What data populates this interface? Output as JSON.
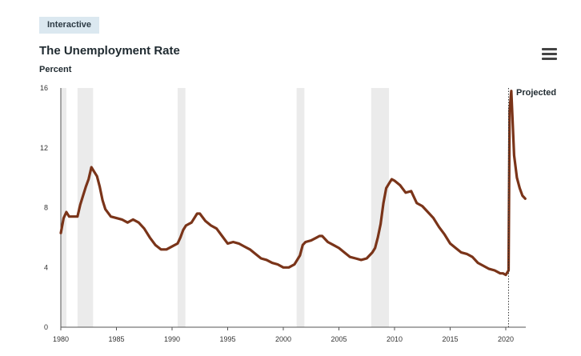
{
  "badge": "Interactive",
  "menu_icon": "hamburger-menu-icon",
  "chart_data": {
    "type": "line",
    "title": "The Unemployment Rate",
    "ylabel": "Percent",
    "xlabel": "",
    "ylim": [
      0,
      16
    ],
    "xlim": [
      1980,
      2021.8
    ],
    "yticks": [
      "0",
      "4",
      "8",
      "12",
      "16"
    ],
    "xticks": [
      "1980",
      "1985",
      "1990",
      "1995",
      "2000",
      "2005",
      "2010",
      "2015",
      "2020"
    ],
    "annotation": "Projected",
    "projection_start": 2020.25,
    "colors": {
      "line": "#7a3419",
      "recession": "#ebebeb"
    },
    "recessions": [
      [
        1980.0,
        1980.5
      ],
      [
        1981.5,
        1982.9
      ],
      [
        1990.5,
        1991.2
      ],
      [
        2001.2,
        2001.9
      ],
      [
        2007.9,
        2009.5
      ]
    ],
    "series": [
      {
        "x": [
          1980.0,
          1980.25,
          1980.5,
          1980.75,
          1981.0,
          1981.5,
          1981.75,
          1982.0,
          1982.25,
          1982.5,
          1982.75,
          1983.0,
          1983.25,
          1983.5,
          1983.75,
          1984.0,
          1984.5,
          1985.0,
          1985.5,
          1986.0,
          1986.5,
          1987.0,
          1987.5,
          1988.0,
          1988.5,
          1989.0,
          1989.5,
          1990.0,
          1990.5,
          1990.75,
          1991.0,
          1991.25,
          1991.75,
          1992.0,
          1992.25,
          1992.5,
          1993.0,
          1993.5,
          1994.0,
          1994.5,
          1995.0,
          1995.5,
          1996.0,
          1996.5,
          1997.0,
          1997.5,
          1998.0,
          1998.5,
          1999.0,
          1999.5,
          2000.0,
          2000.5,
          2001.0,
          2001.25,
          2001.5,
          2001.75,
          2002.0,
          2002.5,
          2003.0,
          2003.25,
          2003.5,
          2004.0,
          2004.5,
          2005.0,
          2005.5,
          2006.0,
          2006.5,
          2007.0,
          2007.5,
          2008.0,
          2008.25,
          2008.5,
          2008.75,
          2009.0,
          2009.25,
          2009.5,
          2009.75,
          2010.0,
          2010.5,
          2011.0,
          2011.5,
          2012.0,
          2012.5,
          2013.0,
          2013.5,
          2014.0,
          2014.5,
          2015.0,
          2015.5,
          2016.0,
          2016.5,
          2017.0,
          2017.5,
          2018.0,
          2018.5,
          2019.0,
          2019.5,
          2019.75,
          2020.0,
          2020.25,
          2020.35,
          2020.5,
          2020.75,
          2021.0,
          2021.25,
          2021.5,
          2021.75
        ],
        "y": [
          6.3,
          7.3,
          7.7,
          7.4,
          7.4,
          7.4,
          8.2,
          8.8,
          9.4,
          9.9,
          10.7,
          10.4,
          10.1,
          9.4,
          8.5,
          7.9,
          7.4,
          7.3,
          7.2,
          7.0,
          7.2,
          7.0,
          6.6,
          6.0,
          5.5,
          5.2,
          5.2,
          5.4,
          5.6,
          6.0,
          6.5,
          6.8,
          7.0,
          7.3,
          7.6,
          7.6,
          7.1,
          6.8,
          6.6,
          6.1,
          5.6,
          5.7,
          5.6,
          5.4,
          5.2,
          4.9,
          4.6,
          4.5,
          4.3,
          4.2,
          4.0,
          4.0,
          4.2,
          4.5,
          4.8,
          5.5,
          5.7,
          5.8,
          6.0,
          6.1,
          6.1,
          5.7,
          5.5,
          5.3,
          5.0,
          4.7,
          4.6,
          4.5,
          4.6,
          5.0,
          5.3,
          6.0,
          6.9,
          8.3,
          9.3,
          9.6,
          9.9,
          9.8,
          9.5,
          9.0,
          9.1,
          8.3,
          8.1,
          7.7,
          7.3,
          6.7,
          6.2,
          5.6,
          5.3,
          5.0,
          4.9,
          4.7,
          4.3,
          4.1,
          3.9,
          3.8,
          3.6,
          3.6,
          3.5,
          3.8,
          14.5,
          15.8,
          11.5,
          10.0,
          9.3,
          8.8,
          8.6
        ]
      }
    ]
  }
}
